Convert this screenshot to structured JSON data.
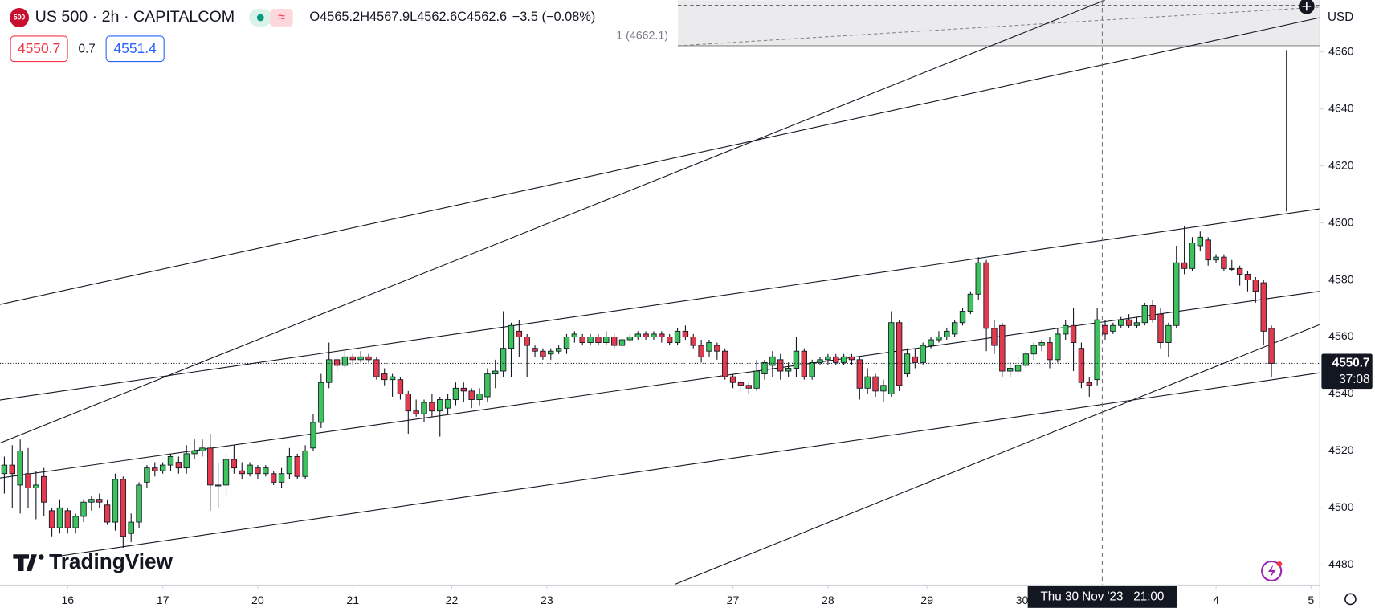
{
  "header": {
    "badge": "500",
    "symbol": "US 500 · 2h · CAPITALCOM",
    "ohlc": [
      "O",
      "4565.2",
      "H",
      "4567.9",
      "L",
      "4562.6",
      "C",
      "4562.6",
      "−3.5 (−0.08%)"
    ],
    "sell": "4550.7",
    "spread": "0.7",
    "buy": "4551.4"
  },
  "overlay": {
    "currency": "USD",
    "measure_label": "1 (4662.1)",
    "countdown": "37:08",
    "crosshair_label": "Thu 30 Nov '23   21:00",
    "watermark": "TradingView"
  },
  "chart_data": {
    "type": "candlestick",
    "up_color": "#3cc35e",
    "down_color": "#e23a4f",
    "xlim": [
      -0.55,
      166.1
    ],
    "ylim": [
      4472.9,
      4678.2
    ],
    "xticks": [
      {
        "value": 8,
        "label": "16"
      },
      {
        "value": 20,
        "label": "17"
      },
      {
        "value": 32,
        "label": "20"
      },
      {
        "value": 44,
        "label": "21"
      },
      {
        "value": 56.5,
        "label": "22"
      },
      {
        "value": 68.5,
        "label": "23"
      },
      {
        "value": 92,
        "label": "27"
      },
      {
        "value": 104,
        "label": "28"
      },
      {
        "value": 116.5,
        "label": "29"
      },
      {
        "value": 128.5,
        "label": "30"
      },
      {
        "value": 153,
        "label": "4"
      },
      {
        "value": 165,
        "label": "5"
      }
    ],
    "yticks": [
      4480,
      4500,
      4520,
      4540,
      4560,
      4580,
      4600,
      4620,
      4640,
      4660
    ],
    "open": [
      4512,
      4515,
      4508,
      4512,
      4507,
      4511,
      4499,
      4493,
      4499,
      4493,
      4497,
      4502,
      4503,
      4501,
      4495,
      4510,
      4491,
      4495,
      4509,
      4514,
      4513,
      4515,
      4516,
      4514,
      4519,
      4520,
      4521,
      4508,
      4508,
      4517,
      4513,
      4512,
      4514,
      4512,
      4512,
      4509,
      4512,
      4518,
      4511,
      4521,
      4530,
      4544,
      4552,
      4550,
      4553,
      4552,
      4553,
      4552,
      4547,
      4545,
      4545,
      4540,
      4534,
      4533,
      4537,
      4534,
      4535,
      4538,
      4542,
      4541,
      4538,
      4539,
      4547,
      4548,
      4556,
      4562,
      4560,
      4556,
      4555,
      4554,
      4555,
      4556,
      4560,
      4560,
      4558,
      4560,
      4558,
      4560,
      4557,
      4559,
      4560,
      4561,
      4560,
      4561,
      4560,
      4558,
      4562,
      4560,
      4557,
      4555,
      4557,
      4555,
      4546,
      4544,
      4543,
      4542,
      4547,
      4550,
      4552,
      4548,
      4549,
      4555,
      4546,
      4551,
      4552,
      4553,
      4551,
      4553,
      4552,
      4542,
      4546,
      4541,
      4540,
      4565,
      4547,
      4553,
      4551,
      4557,
      4559,
      4560,
      4561,
      4565,
      4569,
      4575,
      4586,
      4563,
      4564,
      4548,
      4548,
      4550,
      4554,
      4557,
      4558,
      4552,
      4561,
      4564,
      4556,
      4544,
      4545,
      4564,
      4562,
      4564,
      4566,
      4564,
      4565,
      4571,
      4568,
      4558,
      4564,
      4586,
      4584,
      4592,
      4594,
      4587,
      4588,
      4584,
      4584,
      4582,
      4580,
      4579,
      4563
    ],
    "high": [
      4518,
      4522,
      4524,
      4521,
      4513,
      4514,
      4500,
      4503,
      4500,
      4498,
      4503,
      4504,
      4505,
      4503,
      4512,
      4511,
      4498,
      4509,
      4515,
      4516,
      4516,
      4519,
      4518,
      4522,
      4524,
      4524,
      4526,
      4516,
      4519,
      4522,
      4516,
      4516,
      4515,
      4515,
      4513,
      4514,
      4521,
      4519,
      4522,
      4533,
      4547,
      4558,
      4553,
      4555,
      4554,
      4555,
      4554,
      4553,
      4549,
      4547,
      4546,
      4541,
      4538,
      4538,
      4540,
      4539,
      4540,
      4544,
      4544,
      4542,
      4542,
      4549,
      4552,
      4569,
      4565,
      4566,
      4561,
      4557,
      4556,
      4556,
      4557,
      4561,
      4562,
      4561,
      4561,
      4561,
      4562,
      4561,
      4560,
      4561,
      4562,
      4562,
      4562,
      4562,
      4561,
      4563,
      4564,
      4561,
      4559,
      4559,
      4558,
      4556,
      4547,
      4545,
      4544,
      4552,
      4552,
      4555,
      4554,
      4551,
      4560,
      4556,
      4552,
      4553,
      4554,
      4554,
      4554,
      4554,
      4553,
      4549,
      4547,
      4545,
      4569,
      4566,
      4556,
      4556,
      4558,
      4560,
      4562,
      4563,
      4566,
      4570,
      4576,
      4588,
      4587,
      4566,
      4565,
      4551,
      4553,
      4555,
      4558,
      4559,
      4560,
      4563,
      4566,
      4570,
      4558,
      4546,
      4570,
      4566,
      4565,
      4567,
      4568,
      4567,
      4572,
      4573,
      4570,
      4565,
      4592,
      4599,
      4595,
      4597,
      4595,
      4589,
      4589,
      4587,
      4585,
      4583,
      4581,
      4580,
      4564
    ],
    "low": [
      4505,
      4500,
      4498,
      4500,
      4496,
      4497,
      4490,
      4491,
      4491,
      4491,
      4495,
      4499,
      4500,
      4494,
      4492,
      4486,
      4488,
      4493,
      4507,
      4511,
      4512,
      4513,
      4512,
      4512,
      4517,
      4518,
      4499,
      4500,
      4504,
      4512,
      4510,
      4511,
      4510,
      4511,
      4508,
      4507,
      4510,
      4510,
      4510,
      4520,
      4528,
      4542,
      4548,
      4549,
      4550,
      4551,
      4551,
      4545,
      4543,
      4539,
      4538,
      4526,
      4532,
      4530,
      4532,
      4525,
      4533,
      4536,
      4537,
      4535,
      4536,
      4537,
      4542,
      4546,
      4546,
      4553,
      4546,
      4553,
      4552,
      4552,
      4554,
      4554,
      4558,
      4557,
      4557,
      4557,
      4557,
      4556,
      4556,
      4558,
      4559,
      4559,
      4559,
      4558,
      4557,
      4557,
      4559,
      4556,
      4551,
      4553,
      4552,
      4545,
      4542,
      4541,
      4540,
      4541,
      4545,
      4546,
      4545,
      4546,
      4546,
      4545,
      4545,
      4550,
      4550,
      4550,
      4550,
      4550,
      4538,
      4540,
      4539,
      4537,
      4539,
      4541,
      4546,
      4549,
      4550,
      4556,
      4558,
      4559,
      4560,
      4564,
      4568,
      4573,
      4555,
      4554,
      4546,
      4546,
      4547,
      4549,
      4552,
      4555,
      4549,
      4551,
      4559,
      4548,
      4542,
      4539,
      4543,
      4559,
      4561,
      4563,
      4563,
      4563,
      4564,
      4565,
      4556,
      4553,
      4563,
      4582,
      4583,
      4590,
      4585,
      4586,
      4583,
      4583,
      4578,
      4576,
      4572,
      4557,
      4546
    ],
    "close": [
      4515,
      4512,
      4520,
      4507,
      4508,
      4502,
      4493,
      4500,
      4493,
      4497,
      4502,
      4503,
      4502,
      4495,
      4510,
      4490,
      4495,
      4508,
      4514,
      4513,
      4515,
      4518,
      4514,
      4519,
      4520,
      4521,
      4508,
      4508,
      4517,
      4514,
      4512,
      4515,
      4512,
      4514,
      4509,
      4512,
      4518,
      4511,
      4520,
      4530,
      4544,
      4552,
      4550,
      4553,
      4552,
      4553,
      4552,
      4546,
      4545,
      4546,
      4540,
      4534,
      4533,
      4537,
      4534,
      4538,
      4538,
      4542,
      4541,
      4538,
      4540,
      4547,
      4548,
      4556,
      4564,
      4560,
      4557,
      4555,
      4553,
      4555,
      4556,
      4560,
      4561,
      4558,
      4560,
      4558,
      4560,
      4557,
      4559,
      4560,
      4561,
      4560,
      4561,
      4560,
      4558,
      4562,
      4560,
      4557,
      4553,
      4558,
      4555,
      4546,
      4544,
      4543,
      4542,
      4548,
      4551,
      4553,
      4548,
      4549,
      4555,
      4546,
      4551,
      4552,
      4553,
      4551,
      4553,
      4552,
      4542,
      4546,
      4541,
      4543,
      4565,
      4543,
      4554,
      4551,
      4557,
      4559,
      4560,
      4562,
      4565,
      4569,
      4575,
      4586,
      4563,
      4557,
      4548,
      4549,
      4550,
      4554,
      4557,
      4558,
      4552,
      4561,
      4564,
      4558,
      4544,
      4543,
      4566,
      4561,
      4564,
      4566,
      4564,
      4565,
      4571,
      4566,
      4558,
      4564,
      4586,
      4584,
      4593,
      4595,
      4587,
      4588,
      4584,
      4584,
      4582,
      4580,
      4576,
      4562,
      4550.7
    ]
  }
}
